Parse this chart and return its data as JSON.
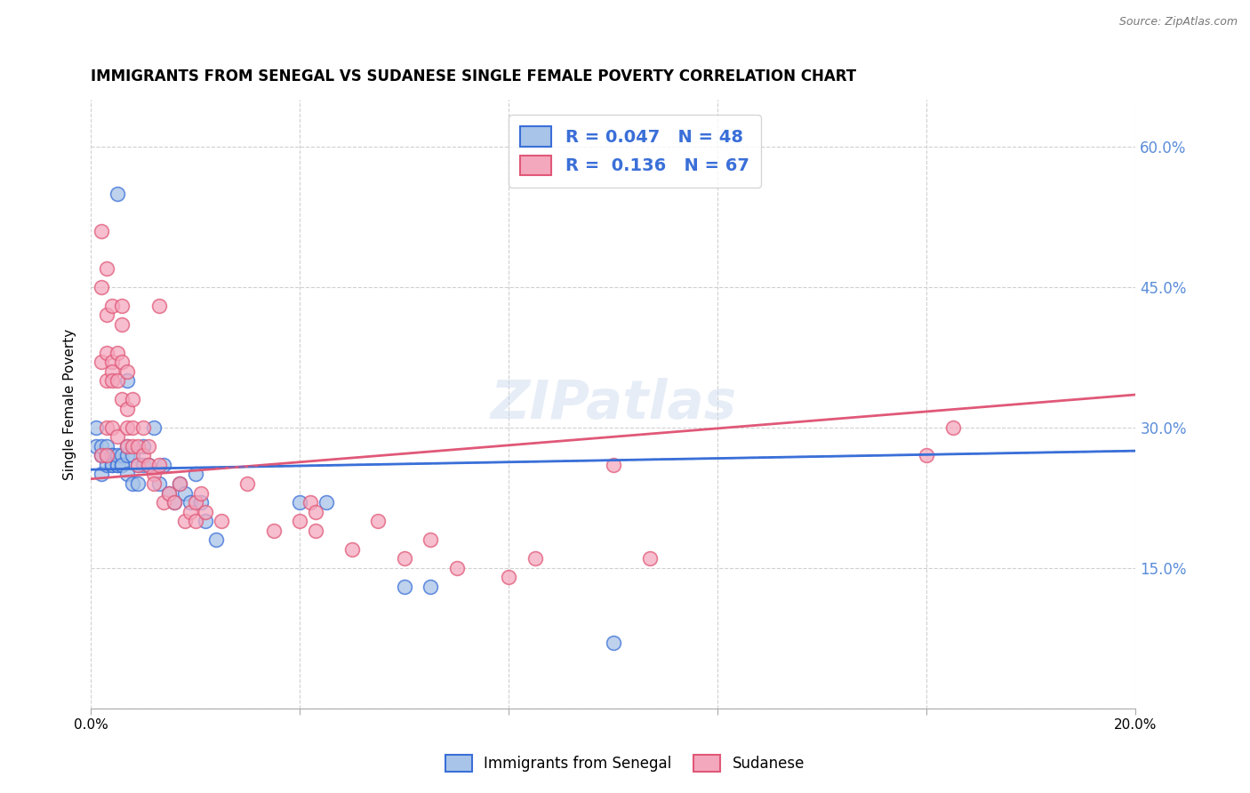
{
  "title": "IMMIGRANTS FROM SENEGAL VS SUDANESE SINGLE FEMALE POVERTY CORRELATION CHART",
  "source": "Source: ZipAtlas.com",
  "ylabel": "Single Female Poverty",
  "series1_label": "Immigrants from Senegal",
  "series2_label": "Sudanese",
  "series1_R": "0.047",
  "series1_N": "48",
  "series2_R": "0.136",
  "series2_N": "67",
  "color1": "#a8c4e8",
  "color2": "#f4a8be",
  "line1_color": "#3a6fd8",
  "line2_color": "#e05878",
  "legend_text_color": "#3a6fd8",
  "right_axis_color": "#5b8dd9",
  "xlim": [
    0.0,
    0.2
  ],
  "ylim": [
    0.0,
    0.65
  ],
  "yticks": [
    0.0,
    0.15,
    0.3,
    0.45,
    0.6
  ],
  "ytick_labels": [
    "",
    "15.0%",
    "30.0%",
    "45.0%",
    "60.0%"
  ],
  "xticks": [
    0.0,
    0.04,
    0.08,
    0.12,
    0.16,
    0.2
  ],
  "xtick_labels": [
    "0.0%",
    "",
    "",
    "",
    "",
    "20.0%"
  ],
  "series1_x": [
    0.005,
    0.001,
    0.001,
    0.002,
    0.002,
    0.002,
    0.003,
    0.003,
    0.003,
    0.003,
    0.004,
    0.004,
    0.004,
    0.004,
    0.005,
    0.005,
    0.005,
    0.006,
    0.006,
    0.006,
    0.007,
    0.007,
    0.007,
    0.007,
    0.008,
    0.008,
    0.009,
    0.009,
    0.01,
    0.01,
    0.011,
    0.012,
    0.013,
    0.014,
    0.015,
    0.016,
    0.017,
    0.018,
    0.019,
    0.02,
    0.021,
    0.022,
    0.024,
    0.04,
    0.045,
    0.06,
    0.065,
    0.1
  ],
  "series1_y": [
    0.55,
    0.28,
    0.3,
    0.27,
    0.25,
    0.28,
    0.26,
    0.27,
    0.27,
    0.28,
    0.26,
    0.27,
    0.27,
    0.26,
    0.26,
    0.26,
    0.27,
    0.26,
    0.27,
    0.26,
    0.25,
    0.27,
    0.28,
    0.35,
    0.24,
    0.27,
    0.26,
    0.24,
    0.26,
    0.28,
    0.26,
    0.3,
    0.24,
    0.26,
    0.23,
    0.22,
    0.24,
    0.23,
    0.22,
    0.25,
    0.22,
    0.2,
    0.18,
    0.22,
    0.22,
    0.13,
    0.13,
    0.07
  ],
  "series2_x": [
    0.002,
    0.002,
    0.002,
    0.002,
    0.003,
    0.003,
    0.003,
    0.003,
    0.003,
    0.003,
    0.004,
    0.004,
    0.004,
    0.004,
    0.004,
    0.005,
    0.005,
    0.005,
    0.006,
    0.006,
    0.006,
    0.006,
    0.007,
    0.007,
    0.007,
    0.007,
    0.008,
    0.008,
    0.008,
    0.009,
    0.009,
    0.01,
    0.01,
    0.011,
    0.011,
    0.012,
    0.012,
    0.013,
    0.013,
    0.014,
    0.015,
    0.016,
    0.017,
    0.018,
    0.019,
    0.02,
    0.02,
    0.021,
    0.022,
    0.025,
    0.03,
    0.035,
    0.04,
    0.042,
    0.043,
    0.043,
    0.05,
    0.055,
    0.06,
    0.065,
    0.07,
    0.08,
    0.085,
    0.1,
    0.107,
    0.16,
    0.165
  ],
  "series2_y": [
    0.51,
    0.45,
    0.37,
    0.27,
    0.47,
    0.42,
    0.38,
    0.35,
    0.3,
    0.27,
    0.43,
    0.37,
    0.36,
    0.35,
    0.3,
    0.38,
    0.35,
    0.29,
    0.43,
    0.41,
    0.37,
    0.33,
    0.36,
    0.32,
    0.3,
    0.28,
    0.33,
    0.3,
    0.28,
    0.28,
    0.26,
    0.27,
    0.3,
    0.28,
    0.26,
    0.25,
    0.24,
    0.43,
    0.26,
    0.22,
    0.23,
    0.22,
    0.24,
    0.2,
    0.21,
    0.22,
    0.2,
    0.23,
    0.21,
    0.2,
    0.24,
    0.19,
    0.2,
    0.22,
    0.19,
    0.21,
    0.17,
    0.2,
    0.16,
    0.18,
    0.15,
    0.14,
    0.16,
    0.26,
    0.16,
    0.27,
    0.3
  ],
  "trendline1_x0": 0.0,
  "trendline1_y0": 0.255,
  "trendline1_x1": 0.2,
  "trendline1_y1": 0.275,
  "trendline2_x0": 0.0,
  "trendline2_y0": 0.245,
  "trendline2_x1": 0.2,
  "trendline2_y1": 0.335
}
